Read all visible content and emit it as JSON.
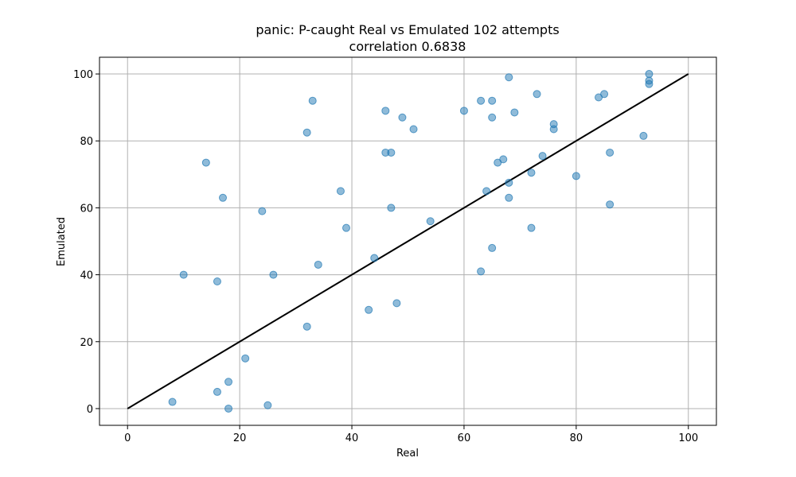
{
  "chart_data": {
    "type": "scatter",
    "title": "panic: P-caught Real vs Emulated 102 attempts",
    "subtitle": "correlation 0.6838",
    "xlabel": "Real",
    "ylabel": "Emulated",
    "xlim": [
      -5,
      105
    ],
    "ylim": [
      -5,
      105
    ],
    "xticks": [
      0,
      20,
      40,
      60,
      80,
      100
    ],
    "yticks": [
      0,
      20,
      40,
      60,
      80,
      100
    ],
    "grid": true,
    "reference_line": {
      "x": [
        0,
        100
      ],
      "y": [
        0,
        100
      ],
      "color": "#000000"
    },
    "point_color": "#1f77b4",
    "points": [
      [
        8,
        2
      ],
      [
        16,
        5
      ],
      [
        18,
        8
      ],
      [
        18,
        0
      ],
      [
        25,
        1
      ],
      [
        21,
        15
      ],
      [
        10,
        40
      ],
      [
        16,
        38
      ],
      [
        26,
        40
      ],
      [
        34,
        43
      ],
      [
        32,
        24.5
      ],
      [
        14,
        73.5
      ],
      [
        17,
        63
      ],
      [
        24,
        59
      ],
      [
        38,
        65
      ],
      [
        39,
        54
      ],
      [
        32,
        82.5
      ],
      [
        33,
        92
      ],
      [
        43,
        29.5
      ],
      [
        48,
        31.5
      ],
      [
        44,
        45
      ],
      [
        47,
        60
      ],
      [
        46,
        89
      ],
      [
        49,
        87
      ],
      [
        51,
        83.5
      ],
      [
        46,
        76.5
      ],
      [
        47,
        76.5
      ],
      [
        54,
        56
      ],
      [
        60,
        89
      ],
      [
        63,
        92
      ],
      [
        65,
        92
      ],
      [
        65,
        87
      ],
      [
        68,
        99
      ],
      [
        69,
        88.5
      ],
      [
        73,
        94
      ],
      [
        76,
        85
      ],
      [
        76,
        83.5
      ],
      [
        66,
        73.5
      ],
      [
        67,
        74.5
      ],
      [
        68,
        67.5
      ],
      [
        72,
        70.5
      ],
      [
        74,
        75.5
      ],
      [
        64,
        65
      ],
      [
        68,
        63
      ],
      [
        80,
        69.5
      ],
      [
        72,
        54
      ],
      [
        86,
        61
      ],
      [
        63,
        41
      ],
      [
        65,
        48
      ],
      [
        84,
        93
      ],
      [
        85,
        94
      ],
      [
        86,
        76.5
      ],
      [
        92,
        81.5
      ],
      [
        93,
        100
      ],
      [
        93,
        98
      ],
      [
        93,
        97
      ]
    ]
  }
}
